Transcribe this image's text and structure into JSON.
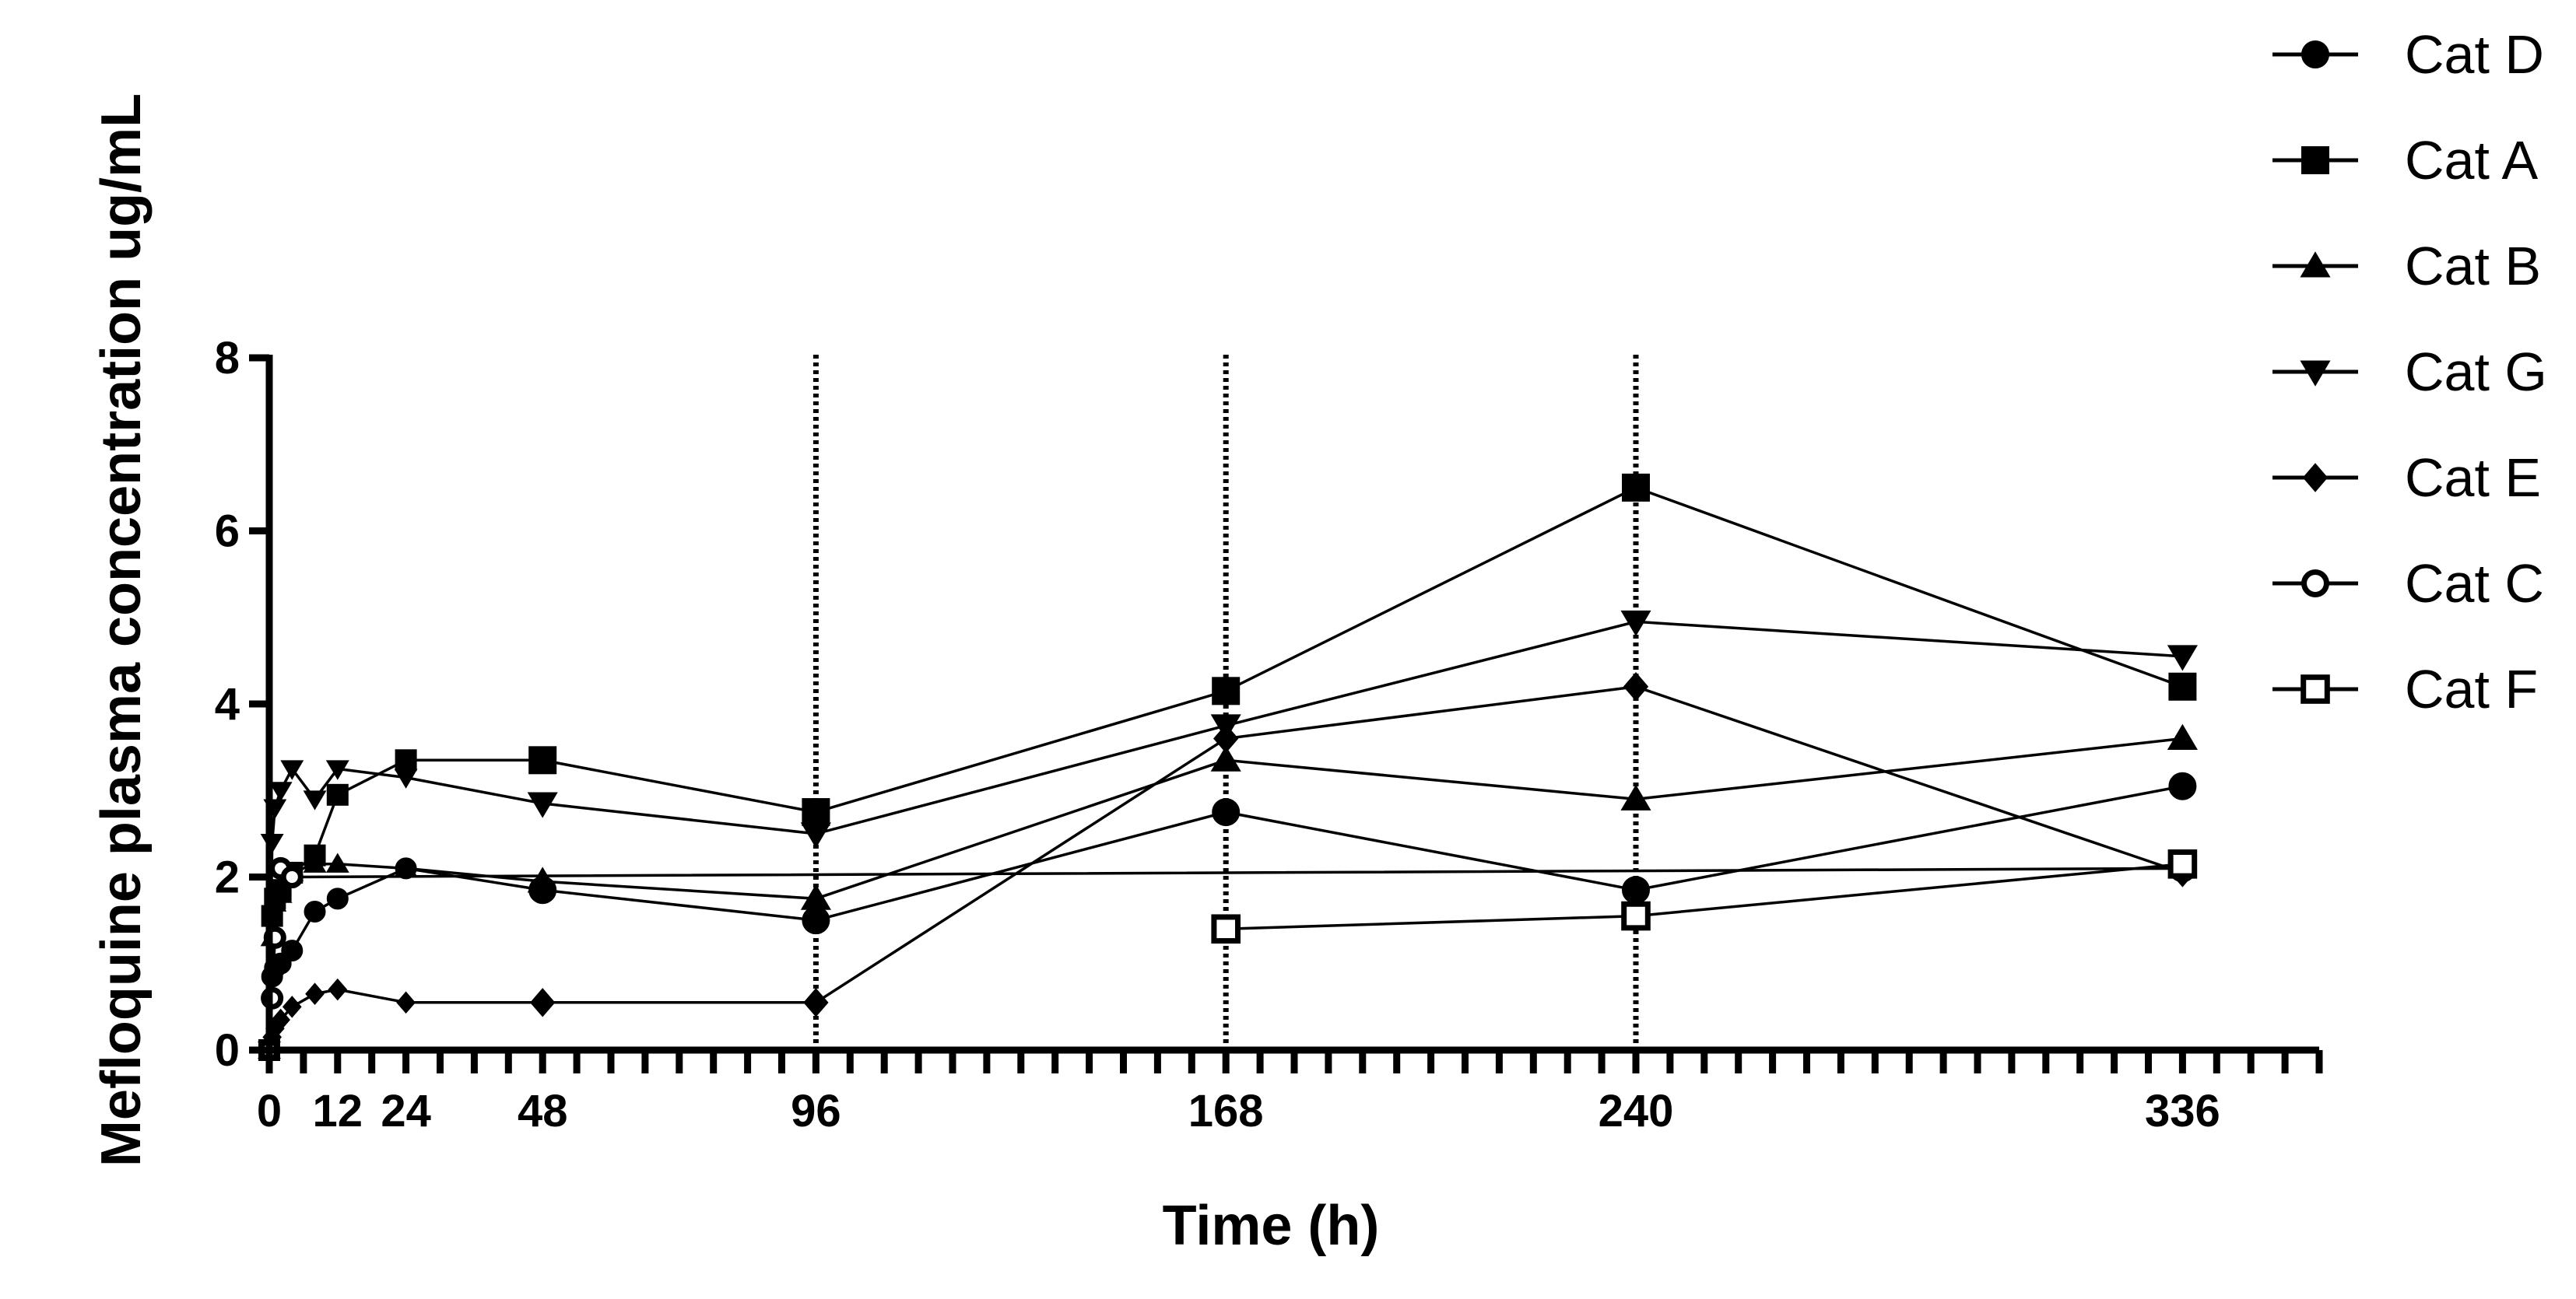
{
  "chart_data": {
    "type": "line",
    "title": "",
    "xlabel": "Time (h)",
    "ylabel": "Mefloquine plasma concentration ug/mL",
    "xlim": [
      0,
      360
    ],
    "ylim": [
      0,
      8
    ],
    "x_ticks": [
      0,
      12,
      24,
      48,
      96,
      168,
      240,
      336
    ],
    "x_tick_labels": [
      "0",
      "12",
      "24",
      "48",
      "96",
      "168",
      "240",
      "336"
    ],
    "x_minor_step": 6,
    "y_ticks": [
      0,
      2,
      4,
      6,
      8
    ],
    "y_tick_labels": [
      "0",
      "2",
      "4",
      "6",
      "8"
    ],
    "vertical_dotted_lines": [
      96,
      168,
      240
    ],
    "grid": false,
    "legend_position": "top-right",
    "series": [
      {
        "name": "Cat D",
        "marker": "circle-filled",
        "points": [
          [
            0,
            0
          ],
          [
            0.5,
            0.85
          ],
          [
            1,
            0.95
          ],
          [
            2,
            1.0
          ],
          [
            4,
            1.15
          ],
          [
            8,
            1.6
          ],
          [
            12,
            1.75
          ],
          [
            24,
            2.1
          ],
          [
            48,
            1.85
          ],
          [
            96,
            1.5
          ],
          [
            168,
            2.75
          ],
          [
            240,
            1.85
          ],
          [
            336,
            3.05
          ]
        ]
      },
      {
        "name": "Cat A",
        "marker": "square-filled",
        "points": [
          [
            0,
            0
          ],
          [
            0.5,
            1.55
          ],
          [
            1,
            1.75
          ],
          [
            2,
            1.85
          ],
          [
            4,
            2.05
          ],
          [
            8,
            2.25
          ],
          [
            12,
            2.95
          ],
          [
            24,
            3.35
          ],
          [
            48,
            3.35
          ],
          [
            96,
            2.75
          ],
          [
            168,
            4.15
          ],
          [
            240,
            6.5
          ],
          [
            336,
            4.2
          ]
        ]
      },
      {
        "name": "Cat B",
        "marker": "triangle-up-filled",
        "points": [
          [
            0,
            0
          ],
          [
            0.5,
            1.3
          ],
          [
            1,
            1.7
          ],
          [
            2,
            1.8
          ],
          [
            4,
            2.05
          ],
          [
            8,
            2.15
          ],
          [
            12,
            2.15
          ],
          [
            24,
            2.1
          ],
          [
            48,
            1.95
          ],
          [
            96,
            1.75
          ],
          [
            168,
            3.35
          ],
          [
            240,
            2.9
          ],
          [
            336,
            3.6
          ]
        ]
      },
      {
        "name": "Cat G",
        "marker": "triangle-down-filled",
        "points": [
          [
            0,
            0
          ],
          [
            0.5,
            2.4
          ],
          [
            1,
            2.8
          ],
          [
            2,
            3.0
          ],
          [
            4,
            3.25
          ],
          [
            8,
            2.9
          ],
          [
            12,
            3.25
          ],
          [
            24,
            3.15
          ],
          [
            48,
            2.85
          ],
          [
            96,
            2.5
          ],
          [
            168,
            3.75
          ],
          [
            240,
            4.95
          ],
          [
            336,
            4.55
          ]
        ]
      },
      {
        "name": "Cat E",
        "marker": "diamond-filled",
        "points": [
          [
            0,
            0
          ],
          [
            0.5,
            0.15
          ],
          [
            1,
            0.25
          ],
          [
            2,
            0.35
          ],
          [
            4,
            0.5
          ],
          [
            8,
            0.65
          ],
          [
            12,
            0.7
          ],
          [
            24,
            0.55
          ],
          [
            48,
            0.55
          ],
          [
            96,
            0.55
          ],
          [
            168,
            3.6
          ],
          [
            240,
            4.2
          ],
          [
            336,
            2.05
          ]
        ]
      },
      {
        "name": "Cat C",
        "marker": "circle-open",
        "points": [
          [
            0,
            0
          ],
          [
            0.5,
            0.6
          ],
          [
            1,
            1.3
          ],
          [
            2,
            2.1
          ],
          [
            4,
            2.0
          ],
          [
            336,
            2.1
          ]
        ]
      },
      {
        "name": "Cat F",
        "marker": "square-open",
        "points": [
          [
            168,
            1.4
          ],
          [
            240,
            1.55
          ],
          [
            336,
            2.15
          ]
        ]
      }
    ]
  }
}
